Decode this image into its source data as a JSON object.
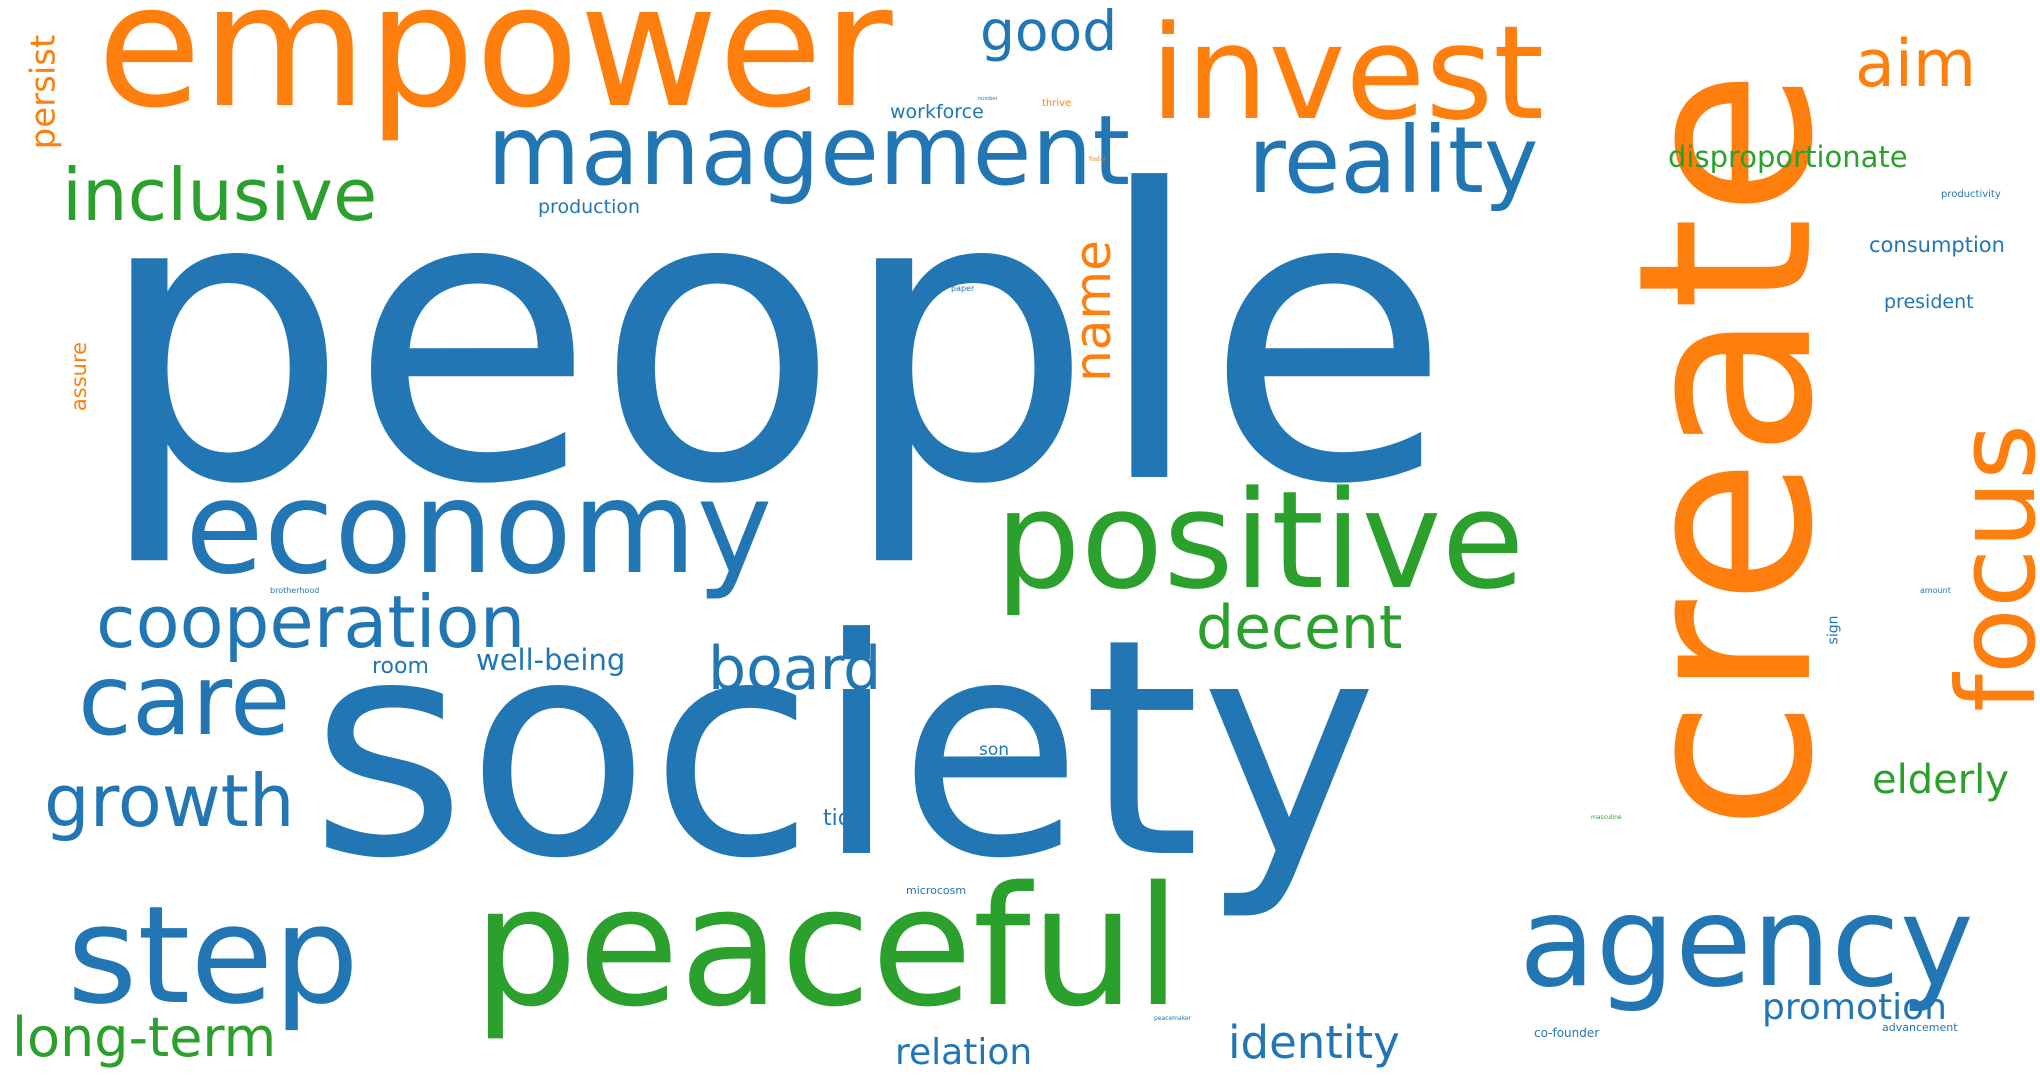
{
  "palette": {
    "blue": "#2276b4",
    "orange": "#ff7f0e",
    "green": "#2ca02c"
  },
  "words": [
    {
      "text": "people",
      "color": "blue"
    },
    {
      "text": "society",
      "color": "blue"
    },
    {
      "text": "create",
      "color": "orange"
    },
    {
      "text": "empower",
      "color": "orange"
    },
    {
      "text": "invest",
      "color": "orange"
    },
    {
      "text": "positive",
      "color": "green"
    },
    {
      "text": "peaceful",
      "color": "green"
    },
    {
      "text": "economy",
      "color": "blue"
    },
    {
      "text": "management",
      "color": "blue"
    },
    {
      "text": "reality",
      "color": "blue"
    },
    {
      "text": "agency",
      "color": "blue"
    },
    {
      "text": "step",
      "color": "blue"
    },
    {
      "text": "focus",
      "color": "orange"
    },
    {
      "text": "care",
      "color": "blue"
    },
    {
      "text": "cooperation",
      "color": "blue"
    },
    {
      "text": "inclusive",
      "color": "green"
    },
    {
      "text": "growth",
      "color": "blue"
    },
    {
      "text": "aim",
      "color": "orange"
    },
    {
      "text": "good",
      "color": "blue"
    },
    {
      "text": "decent",
      "color": "green"
    },
    {
      "text": "board",
      "color": "blue"
    },
    {
      "text": "name",
      "color": "orange"
    },
    {
      "text": "long-term",
      "color": "green"
    },
    {
      "text": "identity",
      "color": "blue"
    },
    {
      "text": "elderly",
      "color": "green"
    },
    {
      "text": "promotion",
      "color": "blue"
    },
    {
      "text": "relation",
      "color": "blue"
    },
    {
      "text": "disproportionate",
      "color": "green"
    },
    {
      "text": "persist",
      "color": "orange"
    },
    {
      "text": "well-being",
      "color": "blue"
    },
    {
      "text": "consumption",
      "color": "blue"
    },
    {
      "text": "president",
      "color": "blue"
    },
    {
      "text": "room",
      "color": "blue"
    },
    {
      "text": "tide",
      "color": "blue"
    },
    {
      "text": "assure",
      "color": "orange"
    },
    {
      "text": "production",
      "color": "blue"
    },
    {
      "text": "workforce",
      "color": "blue"
    },
    {
      "text": "son",
      "color": "blue"
    },
    {
      "text": "sign",
      "color": "blue"
    },
    {
      "text": "co-founder",
      "color": "blue"
    },
    {
      "text": "advancement",
      "color": "blue"
    },
    {
      "text": "microcosm",
      "color": "blue"
    },
    {
      "text": "productivity",
      "color": "blue"
    },
    {
      "text": "thrive",
      "color": "orange"
    },
    {
      "text": "paper",
      "color": "blue"
    },
    {
      "text": "brotherhood",
      "color": "blue"
    },
    {
      "text": "amount",
      "color": "blue"
    },
    {
      "text": "foster",
      "color": "orange"
    },
    {
      "text": "masculine",
      "color": "green"
    },
    {
      "text": "peacemaker",
      "color": "blue"
    },
    {
      "text": "number",
      "color": "blue"
    }
  ]
}
